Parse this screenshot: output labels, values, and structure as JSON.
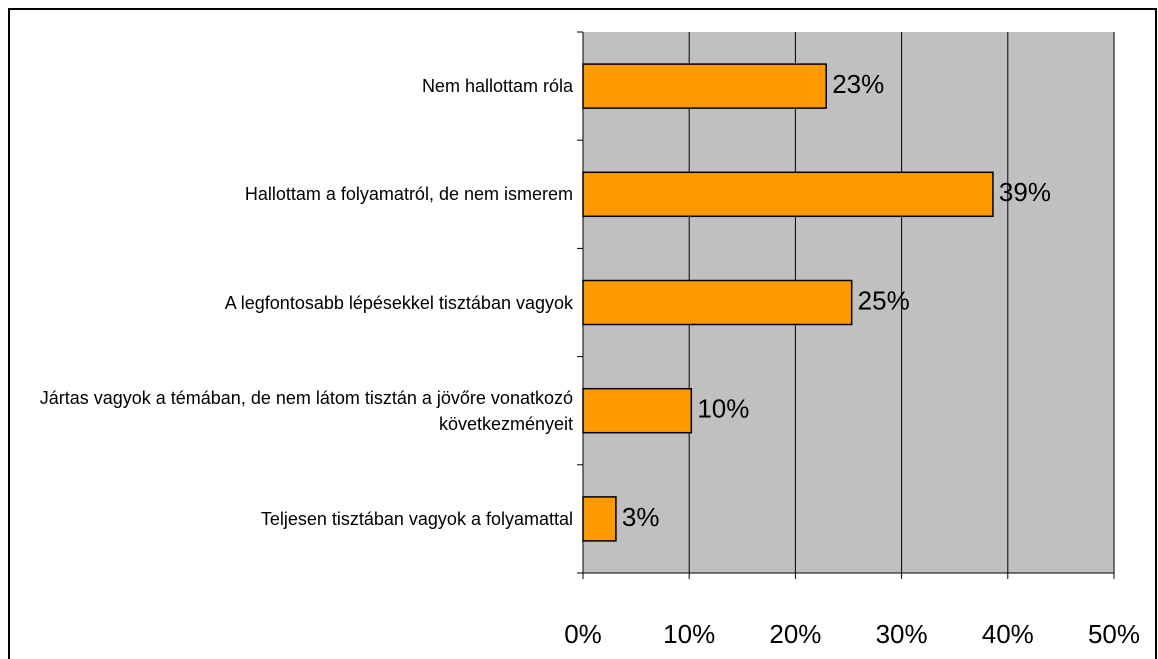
{
  "chart_data": {
    "type": "bar",
    "orientation": "horizontal",
    "categories": [
      "Nem hallottam róla",
      "Hallottam a folyamatról, de nem ismerem",
      "A legfontosabb lépésekkel tisztában vagyok",
      "Jártas vagyok a témában, de nem látom tisztán a jövőre vonatkozó következményeit",
      "Teljesen tisztában vagyok a folyamattal"
    ],
    "values": [
      22.9,
      38.6,
      25.3,
      10.2,
      3.1
    ],
    "value_labels": [
      "23%",
      "39%",
      "25%",
      "10%",
      "3%"
    ],
    "color": "#ff9900",
    "xlim": [
      0,
      50
    ],
    "xticks": [
      {
        "value": 0,
        "label": "0%"
      },
      {
        "value": 10,
        "label": "10%"
      },
      {
        "value": 20,
        "label": "20%"
      },
      {
        "value": 30,
        "label": "30%"
      },
      {
        "value": 40,
        "label": "40%"
      },
      {
        "value": 50,
        "label": "50%"
      }
    ],
    "grid": true
  }
}
